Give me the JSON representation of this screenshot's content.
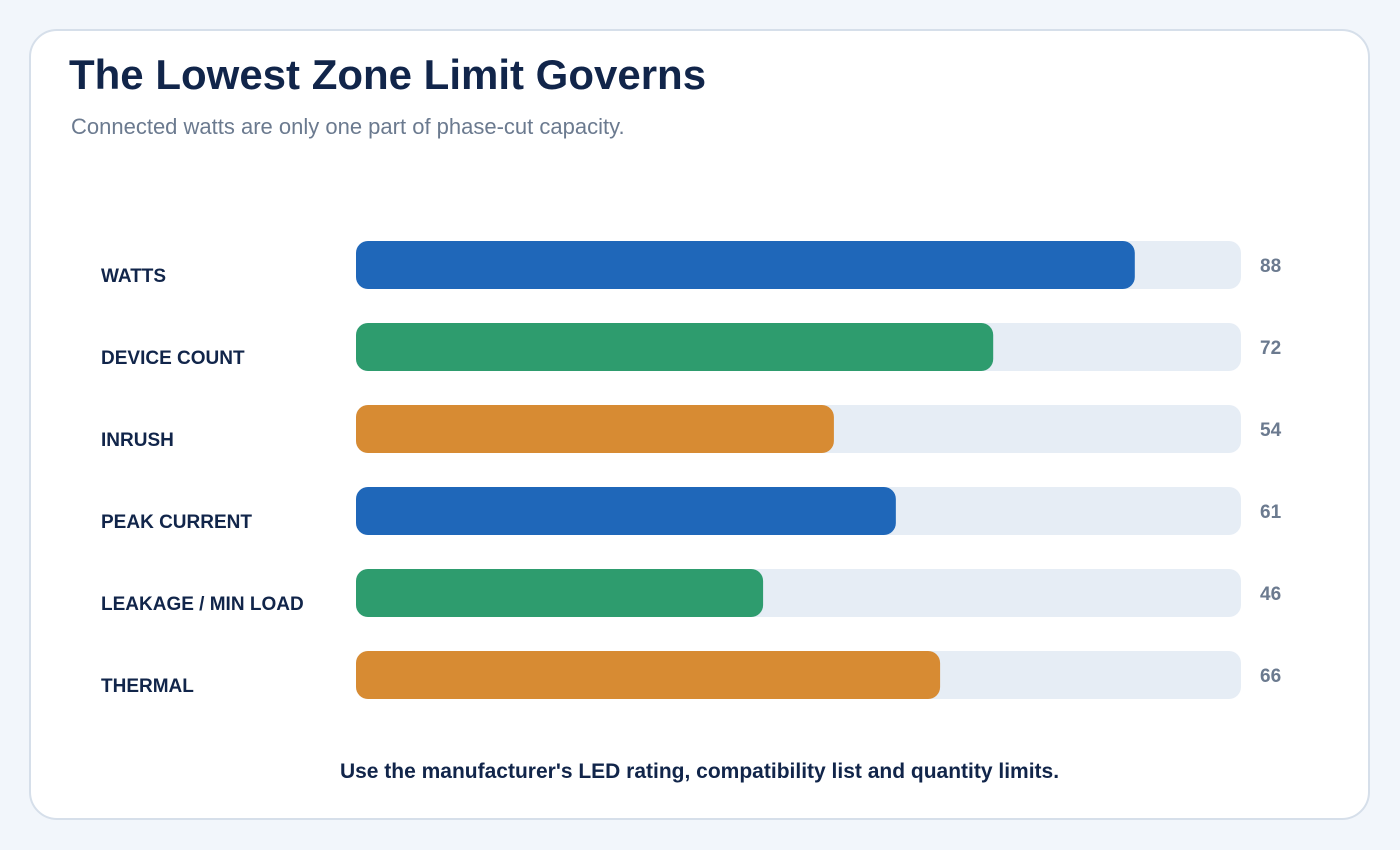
{
  "header": {
    "title": "The Lowest Zone Limit Governs",
    "subtitle": "Connected watts are only one part of phase-cut capacity."
  },
  "footer": {
    "note": "Use the manufacturer's LED rating, compatibility list and quantity limits."
  },
  "colors": {
    "track": "#e6edf5",
    "blue": "#1f67b9",
    "green": "#2e9c6e",
    "orange": "#d78b33"
  },
  "chart_data": {
    "type": "bar",
    "orientation": "horizontal",
    "categories": [
      "WATTS",
      "DEVICE COUNT",
      "INRUSH",
      "PEAK CURRENT",
      "LEAKAGE / MIN LOAD",
      "THERMAL"
    ],
    "values": [
      88,
      72,
      54,
      61,
      46,
      66
    ],
    "bar_colors": [
      "#1f67b9",
      "#2e9c6e",
      "#d78b33",
      "#1f67b9",
      "#2e9c6e",
      "#d78b33"
    ],
    "xlim": [
      0,
      100
    ],
    "grid": false,
    "legend": "none"
  }
}
